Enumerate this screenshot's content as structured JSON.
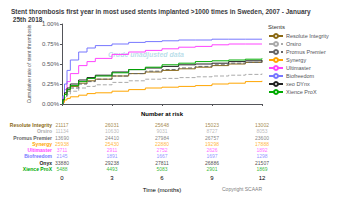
{
  "chart_data": [
    {
      "type": "line",
      "title": "Stent thrombosis first year in most used stents implanted >1000 times in Sweden, 2007 - January 25th 2018.",
      "ylabel": "Cumulative rate of stent thrombosis",
      "annotations": [
        "Crude unadjusted data"
      ],
      "legend": "right",
      "legend_title": "Stents",
      "grid": false,
      "tick_labels": "y",
      "x": [
        0,
        0.05,
        0.15,
        0.3,
        0.5,
        1,
        1.5,
        2,
        3,
        4,
        5,
        6,
        7,
        8,
        9,
        10,
        11,
        12
      ],
      "xlim": [
        0,
        12
      ],
      "xticks": [
        0,
        3,
        6,
        9,
        12
      ],
      "ylim": [
        0,
        0.01
      ],
      "yticks": [
        {
          "value": 0,
          "label": "0.00%"
        },
        {
          "value": 0.0025,
          "label": "0.25%"
        },
        {
          "value": 0.005,
          "label": "0.50%"
        },
        {
          "value": 0.0075,
          "label": "0.75%"
        },
        {
          "value": 0.01,
          "label": "1.00%"
        }
      ],
      "series": [
        {
          "name": "Resolute Integrity",
          "color": "#8B6914",
          "line_style": "solid",
          "values": [
            0,
            0.0005,
            0.0012,
            0.0018,
            0.0022,
            0.0026,
            0.0029,
            0.0031,
            0.0035,
            0.0038,
            0.004,
            0.0042,
            0.0044,
            0.0046,
            0.0048,
            0.005,
            0.0052,
            0.0054
          ]
        },
        {
          "name": "Orsiro",
          "color": "#AAAAAA",
          "line_style": "dashed",
          "values": [
            0,
            0.0003,
            0.0008,
            0.0012,
            0.0016,
            0.002,
            0.0022,
            0.0024,
            0.0027,
            0.0029,
            0.0031,
            0.0032,
            0.0033,
            0.0034,
            0.0035,
            0.0036,
            0.0037,
            0.0038
          ]
        },
        {
          "name": "Promus Premier",
          "color": "#666666",
          "line_style": "dashed",
          "values": [
            0,
            0.0004,
            0.001,
            0.0016,
            0.002,
            0.0025,
            0.0028,
            0.0031,
            0.0035,
            0.0038,
            0.0041,
            0.0043,
            0.0045,
            0.0047,
            0.0049,
            0.0051,
            0.0052,
            0.0054
          ]
        },
        {
          "name": "Synergy",
          "color": "#FFA500",
          "line_style": "solid",
          "values": [
            0,
            0.0002,
            0.0005,
            0.0007,
            0.0009,
            0.0011,
            0.0013,
            0.0014,
            0.0016,
            0.0018,
            0.002,
            0.0021,
            0.0022,
            0.0023,
            0.0025,
            0.0026,
            0.0028,
            0.0029
          ]
        },
        {
          "name": "Ultimaster",
          "color": "#FF44FF",
          "line_style": "solid",
          "values": [
            0,
            0.0008,
            0.0018,
            0.0028,
            0.0038,
            0.0048,
            0.0053,
            0.0057,
            0.0062,
            0.0065,
            0.0067,
            0.0069,
            0.0071,
            0.0072,
            0.0074,
            0.0075,
            0.0075,
            0.0075
          ]
        },
        {
          "name": "Biofreedom",
          "color": "#7777FF",
          "line_style": "solid",
          "values": [
            0,
            0.001,
            0.0025,
            0.0042,
            0.0055,
            0.0065,
            0.007,
            0.0073,
            0.0075,
            0.0077,
            0.0078,
            0.0079,
            0.008,
            0.008,
            0.0081,
            0.0081,
            0.0081,
            0.0081
          ]
        },
        {
          "name": "xeo DYnx",
          "color": "#222222",
          "line_style": "solid",
          "values": [
            0,
            0.0006,
            0.0014,
            0.002,
            0.0025,
            0.003,
            0.0033,
            0.0036,
            0.004,
            0.0043,
            0.0045,
            0.0047,
            0.0049,
            0.005,
            0.0051,
            0.0053,
            0.0054,
            0.0055
          ]
        },
        {
          "name": "Xience ProX",
          "color": "#00AA00",
          "line_style": "solid",
          "values": [
            0,
            0.0005,
            0.0012,
            0.0018,
            0.0023,
            0.0028,
            0.0032,
            0.0035,
            0.0039,
            0.0043,
            0.0046,
            0.0049,
            0.0051,
            0.0053,
            0.0054,
            0.0055,
            0.0056,
            0.0057
          ]
        }
      ]
    },
    {
      "type": "table",
      "title": "Number at risk",
      "xlabel": "Time (months)",
      "annotations": [
        "Copyright SCAAR"
      ],
      "x": [
        0,
        3,
        6,
        9,
        12
      ],
      "xlim": [
        0,
        12
      ],
      "xticks": [
        0,
        3,
        6,
        9,
        12
      ],
      "series": [
        {
          "name": "Resolute Integrity",
          "color": "#8B6914",
          "values": [
            21117,
            26031,
            25648,
            15023,
            13002
          ]
        },
        {
          "name": "Orsiro",
          "color": "#AAAAAA",
          "values": [
            11134,
            10630,
            9031,
            8727,
            8053
          ]
        },
        {
          "name": "Promus Premier",
          "color": "#666666",
          "values": [
            13690,
            24410,
            27984,
            26757,
            23600
          ]
        },
        {
          "name": "Synergy",
          "color": "#FFA500",
          "values": [
            25938,
            25430,
            22880,
            19298,
            17888
          ]
        },
        {
          "name": "Ultimaster",
          "color": "#FF44FF",
          "values": [
            3711,
            2911,
            2752,
            2626,
            1892
          ]
        },
        {
          "name": "Biofreedom",
          "color": "#7777FF",
          "values": [
            2145,
            1891,
            1667,
            1697,
            1298
          ]
        },
        {
          "name": "Onyx",
          "color": "#222222",
          "values": [
            33880,
            29238,
            27811,
            26886,
            21507
          ]
        },
        {
          "name": "Xience ProX",
          "color": "#00AA00",
          "values": [
            5488,
            4493,
            5083,
            2901,
            1869
          ]
        }
      ]
    }
  ]
}
